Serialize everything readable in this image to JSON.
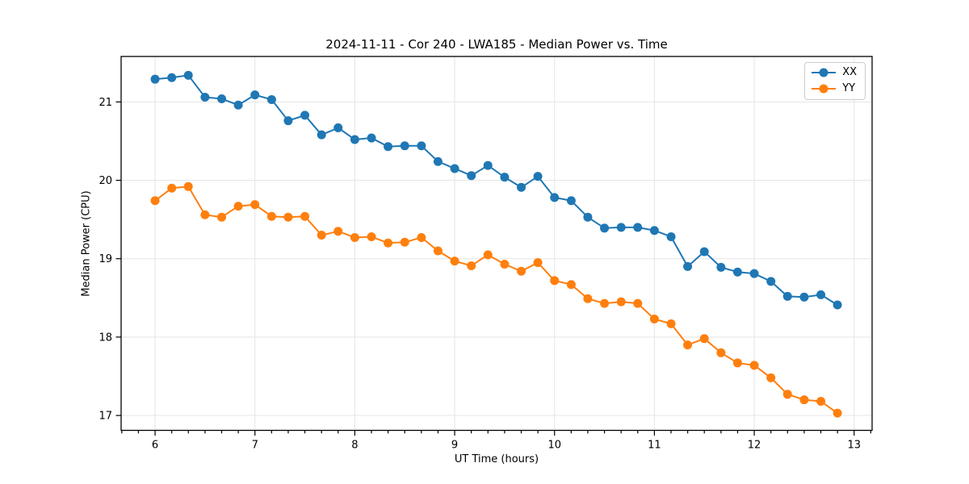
{
  "chart_data": {
    "type": "line",
    "title": "2024-11-11 - Cor 240 - LWA185 - Median Power vs. Time",
    "xlabel": "UT Time (hours)",
    "ylabel": "Median Power (CPU)",
    "xlim": [
      5.66,
      13.18
    ],
    "ylim": [
      16.81,
      21.58
    ],
    "xticks": [
      6,
      7,
      8,
      9,
      10,
      11,
      12,
      13
    ],
    "yticks": [
      17,
      18,
      19,
      20,
      21
    ],
    "x_minor_step_hours": 0.1667,
    "grid": "major",
    "legend_position": "upper right",
    "x": [
      6.0,
      6.167,
      6.333,
      6.5,
      6.667,
      6.833,
      7.0,
      7.167,
      7.333,
      7.5,
      7.667,
      7.833,
      8.0,
      8.167,
      8.333,
      8.5,
      8.667,
      8.833,
      9.0,
      9.167,
      9.333,
      9.5,
      9.667,
      9.833,
      10.0,
      10.167,
      10.333,
      10.5,
      10.667,
      10.833,
      11.0,
      11.167,
      11.333,
      11.5,
      11.667,
      11.833,
      12.0,
      12.167,
      12.333,
      12.5,
      12.667,
      12.833
    ],
    "series": [
      {
        "name": "XX",
        "color": "#1f77b4",
        "values": [
          21.29,
          21.31,
          21.34,
          21.06,
          21.04,
          20.96,
          21.09,
          21.03,
          20.76,
          20.83,
          20.58,
          20.67,
          20.52,
          20.54,
          20.43,
          20.44,
          20.44,
          20.24,
          20.15,
          20.06,
          20.19,
          20.04,
          19.91,
          20.05,
          19.78,
          19.74,
          19.53,
          19.39,
          19.4,
          19.4,
          19.36,
          19.28,
          18.9,
          19.09,
          18.89,
          18.83,
          18.81,
          18.71,
          18.52,
          18.51,
          18.54,
          18.41
        ]
      },
      {
        "name": "YY",
        "color": "#ff7f0e",
        "values": [
          19.74,
          19.9,
          19.92,
          19.56,
          19.53,
          19.67,
          19.69,
          19.54,
          19.53,
          19.54,
          19.3,
          19.35,
          19.27,
          19.28,
          19.2,
          19.21,
          19.27,
          19.1,
          18.97,
          18.91,
          19.05,
          18.93,
          18.84,
          18.95,
          18.72,
          18.67,
          18.49,
          18.43,
          18.45,
          18.43,
          18.23,
          18.17,
          17.9,
          17.98,
          17.8,
          17.67,
          17.64,
          17.48,
          17.27,
          17.2,
          17.18,
          17.03
        ]
      }
    ]
  }
}
